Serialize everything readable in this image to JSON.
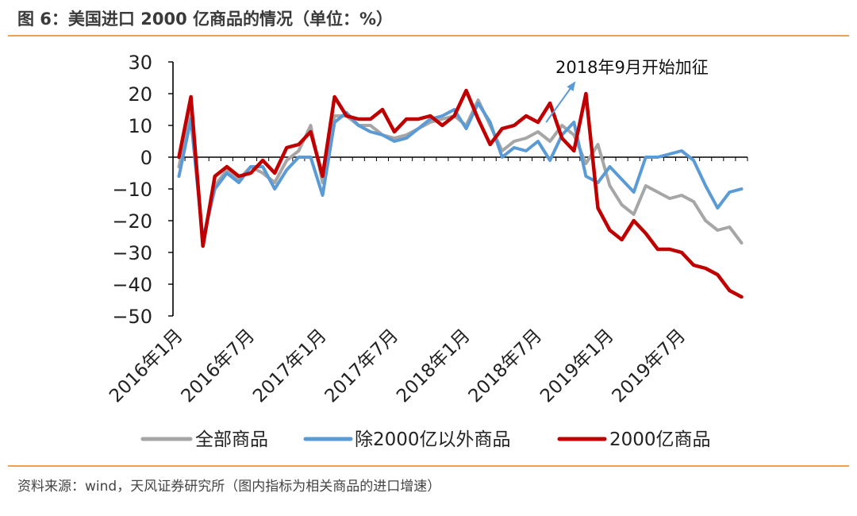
{
  "header": {
    "title": "图 6：美国进口 2000 亿商品的情况（单位：%）"
  },
  "footer": {
    "source": "资料来源：wind，天风证券研究所（图内指标为相关商品的进口增速）"
  },
  "chart_data": {
    "type": "line",
    "title": "",
    "xlabel": "",
    "ylabel": "",
    "ylim": [
      -50,
      30
    ],
    "yticks": [
      30,
      20,
      10,
      0,
      -10,
      -20,
      -30,
      -40,
      -50
    ],
    "x_tick_labels": [
      "2016年1月",
      "2016年7月",
      "2017年1月",
      "2017年7月",
      "2018年1月",
      "2018年7月",
      "2019年1月",
      "2019年7月"
    ],
    "x": [
      "2016-01",
      "2016-02",
      "2016-03",
      "2016-04",
      "2016-05",
      "2016-06",
      "2016-07",
      "2016-08",
      "2016-09",
      "2016-10",
      "2016-11",
      "2016-12",
      "2017-01",
      "2017-02",
      "2017-03",
      "2017-04",
      "2017-05",
      "2017-06",
      "2017-07",
      "2017-08",
      "2017-09",
      "2017-10",
      "2017-11",
      "2017-12",
      "2018-01",
      "2018-02",
      "2018-03",
      "2018-04",
      "2018-05",
      "2018-06",
      "2018-07",
      "2018-08",
      "2018-09",
      "2018-10",
      "2018-11",
      "2018-12",
      "2019-01",
      "2019-02",
      "2019-03",
      "2019-04",
      "2019-05",
      "2019-06",
      "2019-07",
      "2019-08",
      "2019-09",
      "2019-10",
      "2019-11",
      "2019-12"
    ],
    "legend_position": "bottom",
    "grid": false,
    "series": [
      {
        "name": "全部商品",
        "color": "#a6a6a6",
        "values": [
          -3,
          16,
          -26,
          -9,
          -4,
          -7,
          -3,
          -5,
          -8,
          -1,
          2,
          10,
          -8,
          13,
          13,
          10,
          10,
          7,
          6,
          7,
          9,
          11,
          12,
          13,
          10,
          18,
          10,
          2,
          5,
          6,
          8,
          5,
          10,
          7,
          -2,
          4,
          -9,
          -15,
          -18,
          -9,
          -11,
          -13,
          -12,
          -14,
          -20,
          -23,
          -22,
          -27
        ]
      },
      {
        "name": "除2000亿以外商品",
        "color": "#5b9bd5",
        "values": [
          -6,
          12,
          -26,
          -10,
          -5,
          -8,
          -3,
          -3,
          -10,
          -4,
          0,
          0,
          -12,
          11,
          14,
          10,
          8,
          7,
          5,
          6,
          9,
          12,
          13,
          15,
          9,
          17,
          11,
          0,
          3,
          2,
          5,
          -1,
          7,
          11,
          -6,
          -8,
          -3,
          -7,
          -11,
          0,
          0,
          1,
          2,
          -1,
          -9,
          -16,
          -11,
          -10
        ]
      },
      {
        "name": "2000亿商品",
        "color": "#c00000",
        "values": [
          0,
          19,
          -28,
          -6,
          -3,
          -6,
          -5,
          -1,
          -5,
          3,
          4,
          8,
          -6,
          19,
          13,
          12,
          12,
          15,
          8,
          12,
          12,
          13,
          10,
          13,
          21,
          12,
          4,
          9,
          10,
          13,
          11,
          17,
          6,
          2,
          20,
          -16,
          -23,
          -26,
          -20,
          -24,
          -29,
          -29,
          -30,
          -34,
          -35,
          -37,
          -42,
          -44
        ]
      }
    ],
    "annotations": [
      {
        "text": "2018年9月开始加征",
        "x": "2018-09",
        "arrow": true
      }
    ]
  }
}
